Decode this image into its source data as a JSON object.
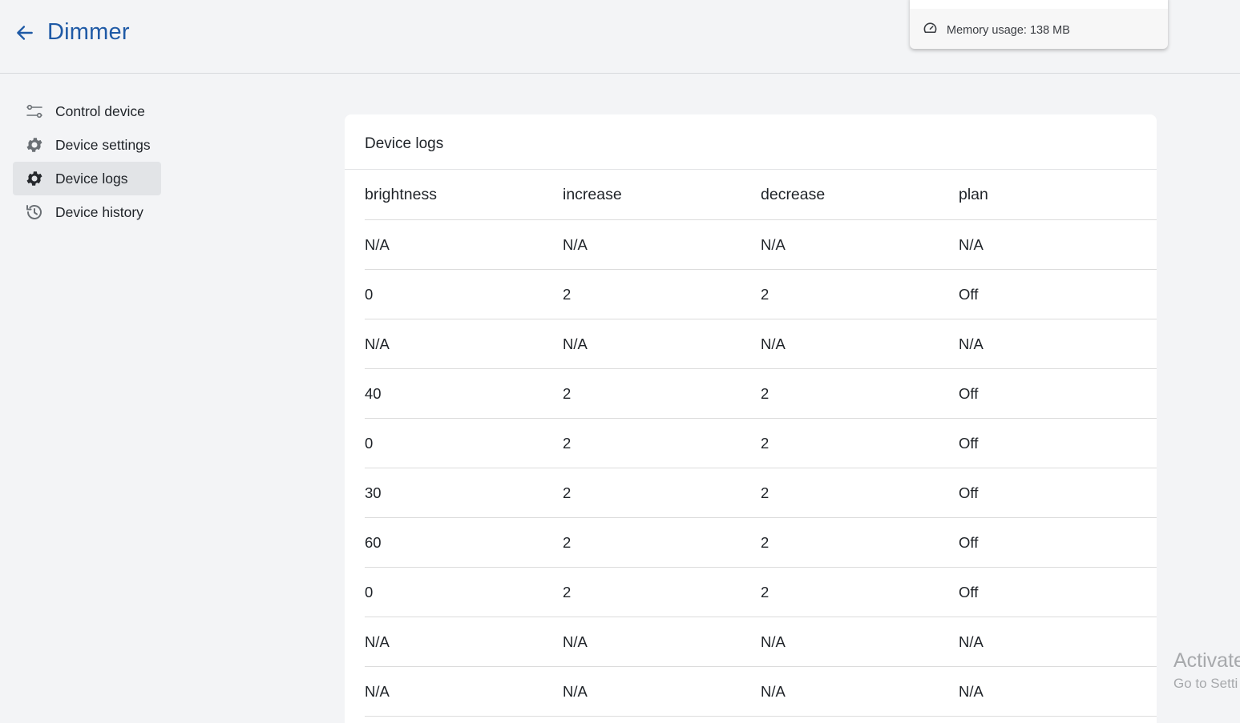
{
  "header": {
    "back_icon": "arrow-left-icon",
    "title": "Dimmer"
  },
  "memory_popup": {
    "icon": "gauge-icon",
    "text": "Memory usage: 138 MB"
  },
  "sidebar": {
    "items": [
      {
        "label": "Control device",
        "icon": "sliders-icon",
        "active": false
      },
      {
        "label": "Device settings",
        "icon": "gear-icon",
        "active": false
      },
      {
        "label": "Device logs",
        "icon": "gear-icon",
        "active": true
      },
      {
        "label": "Device history",
        "icon": "history-icon",
        "active": false
      }
    ]
  },
  "logs_card": {
    "title": "Device logs",
    "columns": [
      "brightness",
      "increase",
      "decrease",
      "plan"
    ],
    "rows": [
      [
        "N/A",
        "N/A",
        "N/A",
        "N/A"
      ],
      [
        "0",
        "2",
        "2",
        "Off"
      ],
      [
        "N/A",
        "N/A",
        "N/A",
        "N/A"
      ],
      [
        "40",
        "2",
        "2",
        "Off"
      ],
      [
        "0",
        "2",
        "2",
        "Off"
      ],
      [
        "30",
        "2",
        "2",
        "Off"
      ],
      [
        "60",
        "2",
        "2",
        "Off"
      ],
      [
        "0",
        "2",
        "2",
        "Off"
      ],
      [
        "N/A",
        "N/A",
        "N/A",
        "N/A"
      ],
      [
        "N/A",
        "N/A",
        "N/A",
        "N/A"
      ]
    ]
  },
  "watermark": {
    "line1": "Activate",
    "line2": "Go to Setti"
  },
  "colors": {
    "accent": "#1f5aa6",
    "background": "#f3f4f6",
    "active_item": "#e2e4e7"
  }
}
